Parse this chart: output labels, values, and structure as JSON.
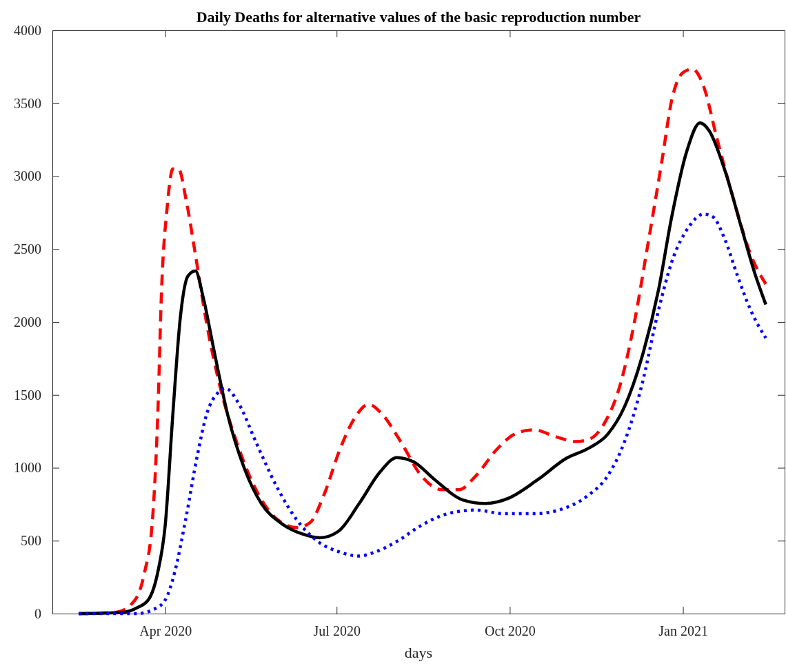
{
  "chart_data": {
    "type": "line",
    "title": "Daily Deaths for alternative values of the basic reproduction number",
    "xlabel": "days",
    "xlim": [
      "2020-02-01",
      "2021-02-24"
    ],
    "xticks": [
      {
        "value": "2020-04-01",
        "label": "Apr 2020"
      },
      {
        "value": "2020-07-01",
        "label": "Jul 2020"
      },
      {
        "value": "2020-10-01",
        "label": "Oct 2020"
      },
      {
        "value": "2021-01-01",
        "label": "Jan 2021"
      }
    ],
    "ylim": [
      0,
      4000
    ],
    "yticks": [
      0,
      500,
      1000,
      1500,
      2000,
      2500,
      3000,
      3500,
      4000
    ],
    "grid": false,
    "marker": "none",
    "series": [
      {
        "color": "#ff0000",
        "line_style": "dashed",
        "x": [
          "2020-02-15",
          "2020-03-06",
          "2020-03-16",
          "2020-03-21",
          "2020-03-25",
          "2020-03-28",
          "2020-03-30",
          "2020-04-02",
          "2020-04-05",
          "2020-04-08",
          "2020-04-12",
          "2020-04-17",
          "2020-04-23",
          "2020-04-30",
          "2020-05-10",
          "2020-05-21",
          "2020-05-31",
          "2020-06-10",
          "2020-06-17",
          "2020-06-24",
          "2020-07-03",
          "2020-07-11",
          "2020-07-18",
          "2020-07-25",
          "2020-08-04",
          "2020-08-15",
          "2020-08-26",
          "2020-09-04",
          "2020-09-13",
          "2020-09-24",
          "2020-10-05",
          "2020-10-14",
          "2020-10-25",
          "2020-11-05",
          "2020-11-12",
          "2020-11-20",
          "2020-11-29",
          "2020-12-06",
          "2020-12-13",
          "2020-12-21",
          "2020-12-26",
          "2021-01-01",
          "2021-01-06",
          "2021-01-12",
          "2021-01-19",
          "2021-01-28",
          "2021-02-06",
          "2021-02-14"
        ],
        "values": [
          0,
          10,
          95,
          285,
          615,
          1370,
          2220,
          2790,
          3050,
          3050,
          2840,
          2460,
          1985,
          1560,
          1135,
          805,
          640,
          590,
          625,
          805,
          1135,
          1350,
          1435,
          1370,
          1180,
          945,
          850,
          850,
          945,
          1125,
          1240,
          1260,
          1215,
          1180,
          1195,
          1300,
          1585,
          1985,
          2505,
          3120,
          3520,
          3710,
          3735,
          3615,
          3260,
          2835,
          2460,
          2260
        ]
      },
      {
        "color": "#000000",
        "line_style": "solid",
        "x": [
          "2020-02-15",
          "2020-03-10",
          "2020-03-17",
          "2020-03-23",
          "2020-03-28",
          "2020-04-01",
          "2020-04-05",
          "2020-04-09",
          "2020-04-13",
          "2020-04-17",
          "2020-04-21",
          "2020-04-27",
          "2020-05-04",
          "2020-05-13",
          "2020-05-22",
          "2020-06-02",
          "2020-06-13",
          "2020-06-22",
          "2020-07-02",
          "2020-07-13",
          "2020-07-24",
          "2020-08-02",
          "2020-08-11",
          "2020-08-22",
          "2020-09-06",
          "2020-09-18",
          "2020-10-01",
          "2020-10-16",
          "2020-10-31",
          "2020-11-12",
          "2020-11-22",
          "2020-12-01",
          "2020-12-10",
          "2020-12-19",
          "2020-12-26",
          "2021-01-03",
          "2021-01-10",
          "2021-01-15",
          "2021-01-23",
          "2021-02-01",
          "2021-02-08",
          "2021-02-14"
        ],
        "values": [
          0,
          10,
          40,
          95,
          285,
          615,
          1370,
          2035,
          2315,
          2350,
          2175,
          1795,
          1370,
          995,
          755,
          615,
          545,
          520,
          565,
          755,
          970,
          1070,
          1040,
          920,
          780,
          755,
          795,
          920,
          1065,
          1135,
          1230,
          1420,
          1750,
          2220,
          2720,
          3170,
          3365,
          3310,
          3050,
          2650,
          2340,
          2120
        ]
      },
      {
        "color": "#0000ff",
        "line_style": "dotted",
        "x": [
          "2020-02-15",
          "2020-03-17",
          "2020-03-26",
          "2020-04-01",
          "2020-04-06",
          "2020-04-12",
          "2020-04-18",
          "2020-04-23",
          "2020-04-29",
          "2020-05-03",
          "2020-05-10",
          "2020-05-19",
          "2020-05-30",
          "2020-06-10",
          "2020-06-21",
          "2020-07-02",
          "2020-07-13",
          "2020-07-22",
          "2020-08-02",
          "2020-08-15",
          "2020-08-29",
          "2020-09-13",
          "2020-09-28",
          "2020-10-14",
          "2020-10-27",
          "2020-11-11",
          "2020-11-22",
          "2020-12-01",
          "2020-12-10",
          "2020-12-19",
          "2020-12-26",
          "2021-01-04",
          "2021-01-12",
          "2021-01-17",
          "2021-01-23",
          "2021-01-30",
          "2021-02-06",
          "2021-02-14"
        ],
        "values": [
          0,
          0,
          30,
          95,
          285,
          660,
          1085,
          1370,
          1515,
          1545,
          1440,
          1180,
          875,
          640,
          495,
          425,
          395,
          425,
          495,
          605,
          685,
          710,
          685,
          685,
          710,
          805,
          945,
          1180,
          1560,
          2080,
          2410,
          2650,
          2740,
          2720,
          2575,
          2315,
          2080,
          1890
        ]
      }
    ]
  }
}
